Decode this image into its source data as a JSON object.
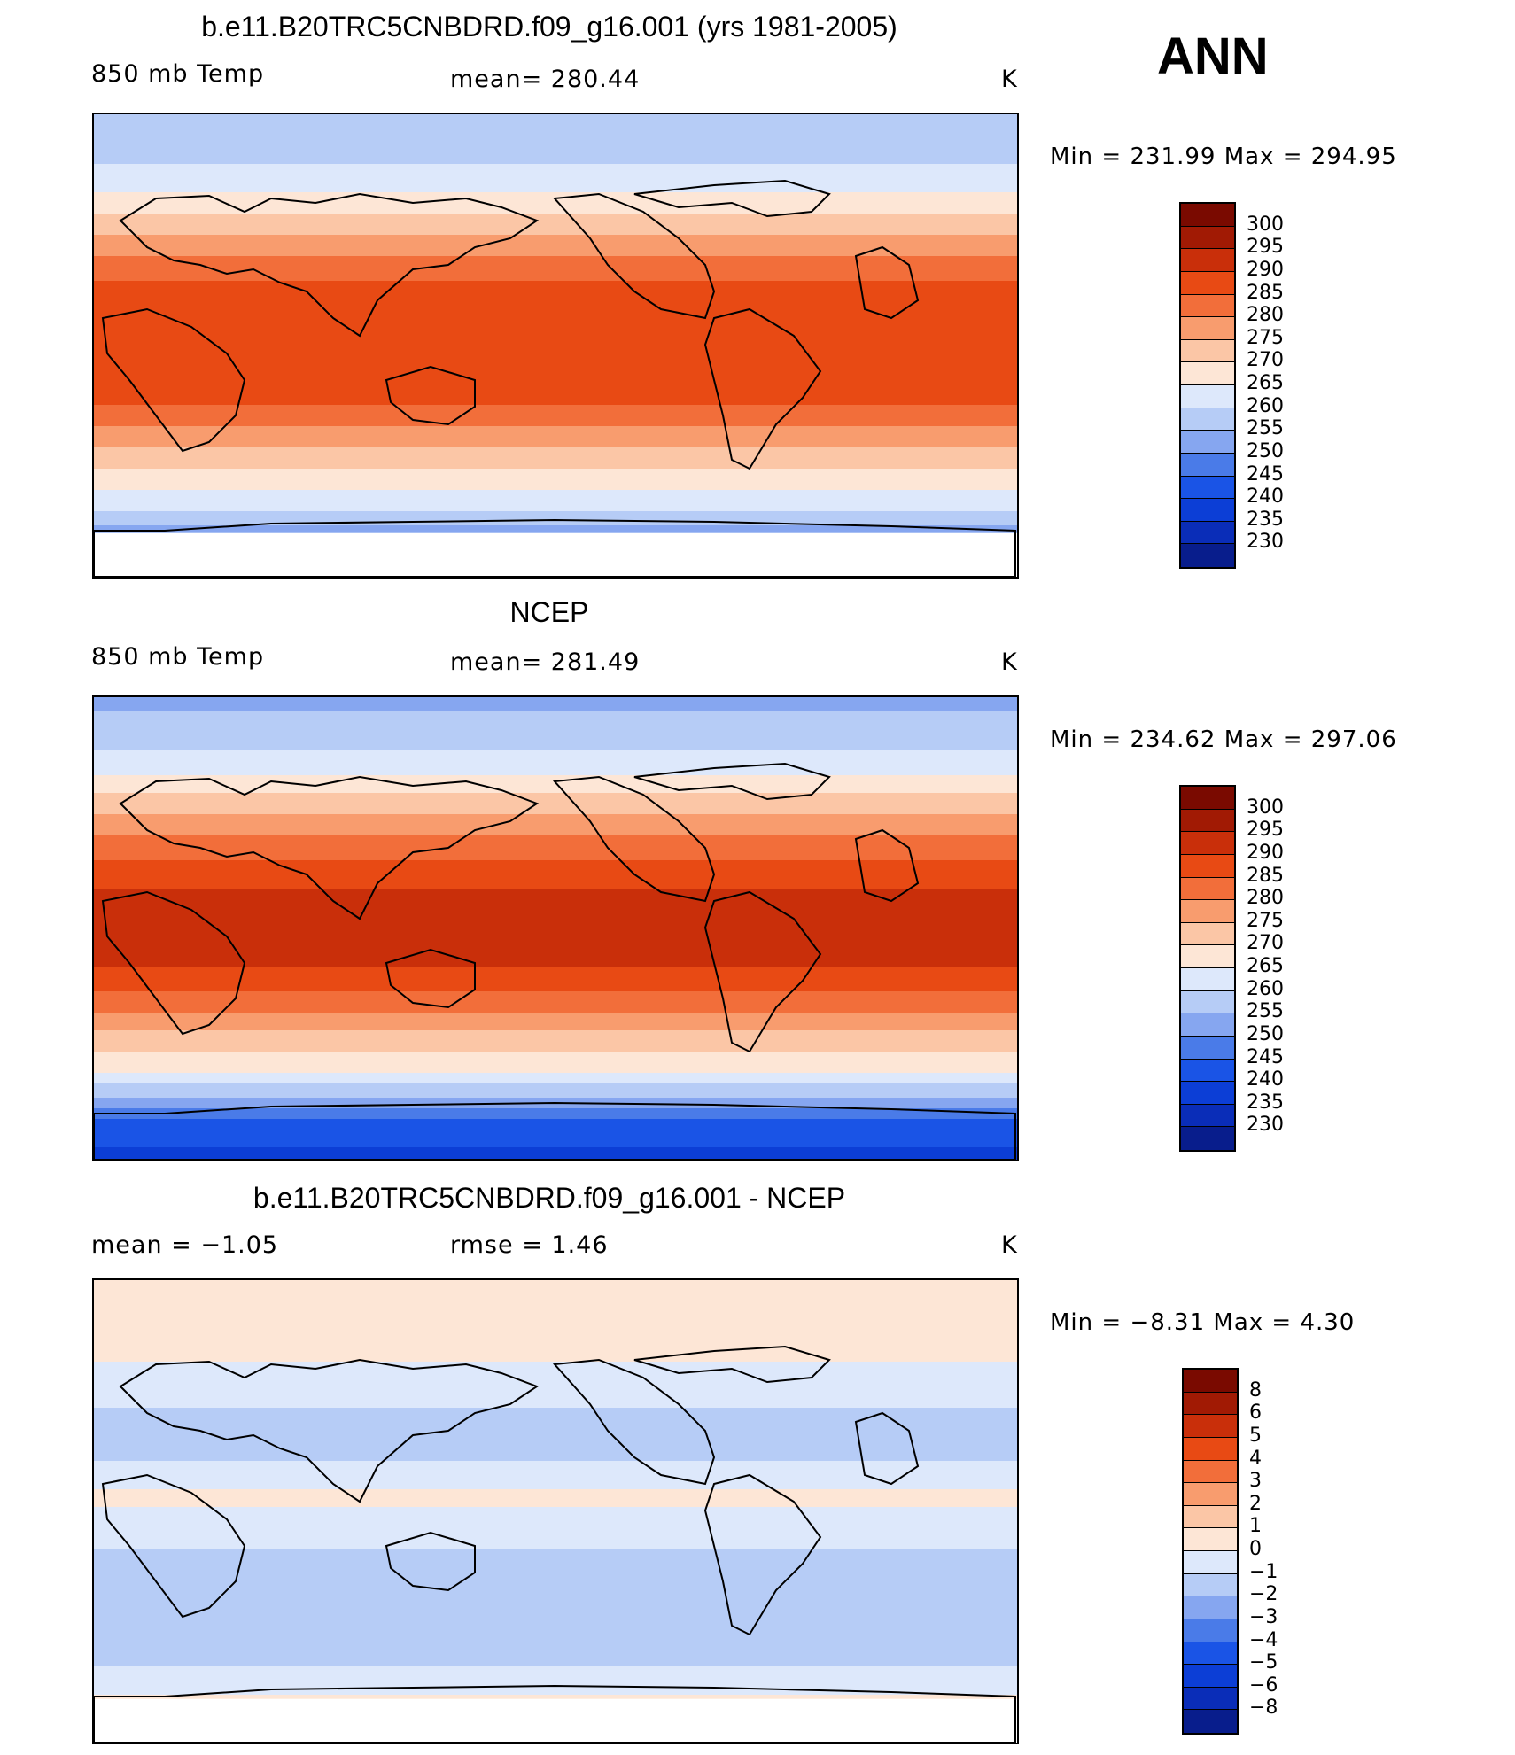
{
  "season_label": "ANN",
  "colors": {
    "abs": [
      "#081d8c",
      "#0a2db8",
      "#0c3ed6",
      "#1a54e6",
      "#4a7be8",
      "#86a6f0",
      "#b6ccf6",
      "#dde8fb",
      "#fde6d6",
      "#fbc6a6",
      "#f89c6e",
      "#f26e3a",
      "#e84a14",
      "#c92f0a",
      "#a11a04",
      "#7a0a00"
    ],
    "diff": [
      "#081d8c",
      "#0a2db8",
      "#0c3ed6",
      "#1a54e6",
      "#4a7be8",
      "#86a6f0",
      "#b6ccf6",
      "#dde8fb",
      "#fde6d6",
      "#fbc6a6",
      "#f89c6e",
      "#f26e3a",
      "#e84a14",
      "#c92f0a",
      "#a11a04",
      "#7a0a00"
    ]
  },
  "panels": [
    {
      "title": "b.e11.B20TRC5CNBDRD.f09_g16.001 (yrs 1981-2005)",
      "left_label": "850 mb Temp",
      "center_label": "mean=  280.44",
      "units": "K",
      "minmax": "Min  =  231.99  Max  =  294.95",
      "colorbar_labels": [
        "300",
        "295",
        "290",
        "285",
        "280",
        "275",
        "270",
        "265",
        "260",
        "255",
        "250",
        "245",
        "240",
        "235",
        "230"
      ]
    },
    {
      "title": "NCEP",
      "left_label": "850 mb Temp",
      "center_label": "mean=  281.49",
      "units": "K",
      "minmax": "Min  =  234.62  Max  =  297.06",
      "colorbar_labels": [
        "300",
        "295",
        "290",
        "285",
        "280",
        "275",
        "270",
        "265",
        "260",
        "255",
        "250",
        "245",
        "240",
        "235",
        "230"
      ]
    },
    {
      "title": "b.e11.B20TRC5CNBDRD.f09_g16.001 - NCEP",
      "left_label": "mean  =    −1.05",
      "center_label": "rmse  =     1.46",
      "units": "K",
      "minmax": "Min  =    −8.31  Max  =     4.30",
      "colorbar_labels": [
        "8",
        "6",
        "5",
        "4",
        "3",
        "2",
        "1",
        "0",
        "−1",
        "−2",
        "−3",
        "−4",
        "−5",
        "−6",
        "−8"
      ]
    }
  ],
  "chart_data": [
    {
      "type": "heatmap",
      "title": "b.e11.B20TRC5CNBDRD.f09_g16.001 (yrs 1981-2005)",
      "variable": "850 mb Temp",
      "units": "K",
      "mean": 280.44,
      "min": 231.99,
      "max": 294.95,
      "colorbar_levels": [
        230,
        235,
        240,
        245,
        250,
        255,
        260,
        265,
        270,
        275,
        280,
        285,
        290,
        295,
        300
      ],
      "xlim": [
        0,
        360
      ],
      "ylim": [
        -90,
        90
      ],
      "zonal_profile": {
        "lat": [
          -90,
          -75,
          -65,
          -55,
          -45,
          -35,
          -25,
          -15,
          -5,
          5,
          15,
          25,
          35,
          45,
          55,
          65,
          75,
          90
        ],
        "value": [
          240,
          250,
          260,
          266,
          272,
          278,
          284,
          288,
          289,
          289,
          288,
          285,
          280,
          274,
          268,
          262,
          258,
          255
        ]
      }
    },
    {
      "type": "heatmap",
      "title": "NCEP",
      "variable": "850 mb Temp",
      "units": "K",
      "mean": 281.49,
      "min": 234.62,
      "max": 297.06,
      "colorbar_levels": [
        230,
        235,
        240,
        245,
        250,
        255,
        260,
        265,
        270,
        275,
        280,
        285,
        290,
        295,
        300
      ],
      "xlim": [
        0,
        360
      ],
      "ylim": [
        -90,
        90
      ],
      "zonal_profile": {
        "lat": [
          -90,
          -75,
          -65,
          -55,
          -45,
          -35,
          -25,
          -15,
          -5,
          5,
          15,
          25,
          35,
          45,
          55,
          65,
          75,
          90
        ],
        "value": [
          238,
          244,
          256,
          266,
          272,
          278,
          285,
          290,
          291,
          291,
          290,
          286,
          281,
          275,
          268,
          262,
          257,
          254
        ]
      }
    },
    {
      "type": "heatmap",
      "title": "b.e11.B20TRC5CNBDRD.f09_g16.001 - NCEP",
      "units": "K",
      "mean": -1.05,
      "rmse": 1.46,
      "min": -8.31,
      "max": 4.3,
      "colorbar_levels": [
        -8,
        -6,
        -5,
        -4,
        -3,
        -2,
        -1,
        0,
        1,
        2,
        3,
        4,
        5,
        6,
        8
      ],
      "xlim": [
        0,
        360
      ],
      "ylim": [
        -90,
        90
      ],
      "zonal_profile": {
        "lat": [
          -90,
          -75,
          -65,
          -55,
          -45,
          -35,
          -25,
          -15,
          -5,
          5,
          15,
          25,
          35,
          45,
          55,
          65,
          75,
          90
        ],
        "value": [
          0.5,
          0.3,
          -0.5,
          -1.5,
          -2.0,
          -1.8,
          -1.2,
          -1.0,
          -0.5,
          0.3,
          -0.5,
          -1.5,
          -1.2,
          -0.8,
          -0.3,
          0.5,
          0.8,
          1.0
        ]
      }
    }
  ]
}
